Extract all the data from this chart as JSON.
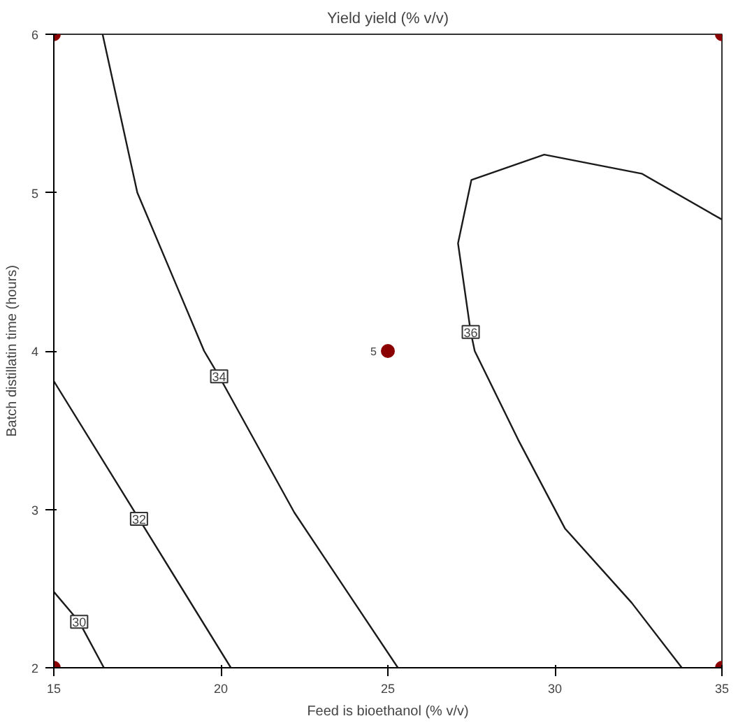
{
  "chart_data": {
    "type": "line",
    "title": "Yield yield (% v/v)",
    "xlabel": "Feed is bioethanol (% v/v)",
    "ylabel": "Batch distillatin time (hours)",
    "xlim": [
      15,
      35
    ],
    "ylim": [
      2,
      6
    ],
    "xticks": [
      15,
      20,
      25,
      30,
      35
    ],
    "yticks": [
      2,
      3,
      4,
      5,
      6
    ],
    "grid": false,
    "line_style": "solid",
    "marker": "none",
    "series": [
      {
        "color": "#1a1a1a",
        "x": [
          15,
          15.76,
          16.5
        ],
        "values": [
          2.48,
          2.29,
          2
        ]
      },
      {
        "color": "#1a1a1a",
        "x": [
          15,
          17.55,
          20.3
        ],
        "values": [
          3.81,
          2.94,
          2
        ]
      },
      {
        "color": "#1a1a1a",
        "x": [
          16.46,
          17.5,
          19.5,
          19.95,
          22.2,
          25.3
        ],
        "values": [
          6,
          5,
          4,
          3.84,
          2.98,
          2
        ]
      },
      {
        "color": "#1a1a1a",
        "x": [
          35,
          32.6,
          29.68,
          27.5,
          27.1,
          27.48,
          27.6,
          28.9,
          30.3,
          32.3,
          33.8
        ],
        "values": [
          4.83,
          5.12,
          5.24,
          5.08,
          4.68,
          4.12,
          4,
          3.44,
          2.88,
          2.41,
          2
        ]
      },
      {
        "type": "scatter",
        "marker": "circle",
        "color": "#8b0000",
        "x": [
          15,
          15,
          35,
          35,
          25
        ],
        "values": [
          2,
          6,
          6,
          2,
          4
        ]
      }
    ],
    "annotations": [
      {
        "text": "30",
        "x": 15.76,
        "y": 2.29
      },
      {
        "text": "32",
        "x": 17.55,
        "y": 2.94
      },
      {
        "text": "34",
        "x": 19.95,
        "y": 3.84
      },
      {
        "text": "36",
        "x": 27.48,
        "y": 4.12
      },
      {
        "text": "5",
        "x": 25,
        "y": 4
      }
    ]
  }
}
